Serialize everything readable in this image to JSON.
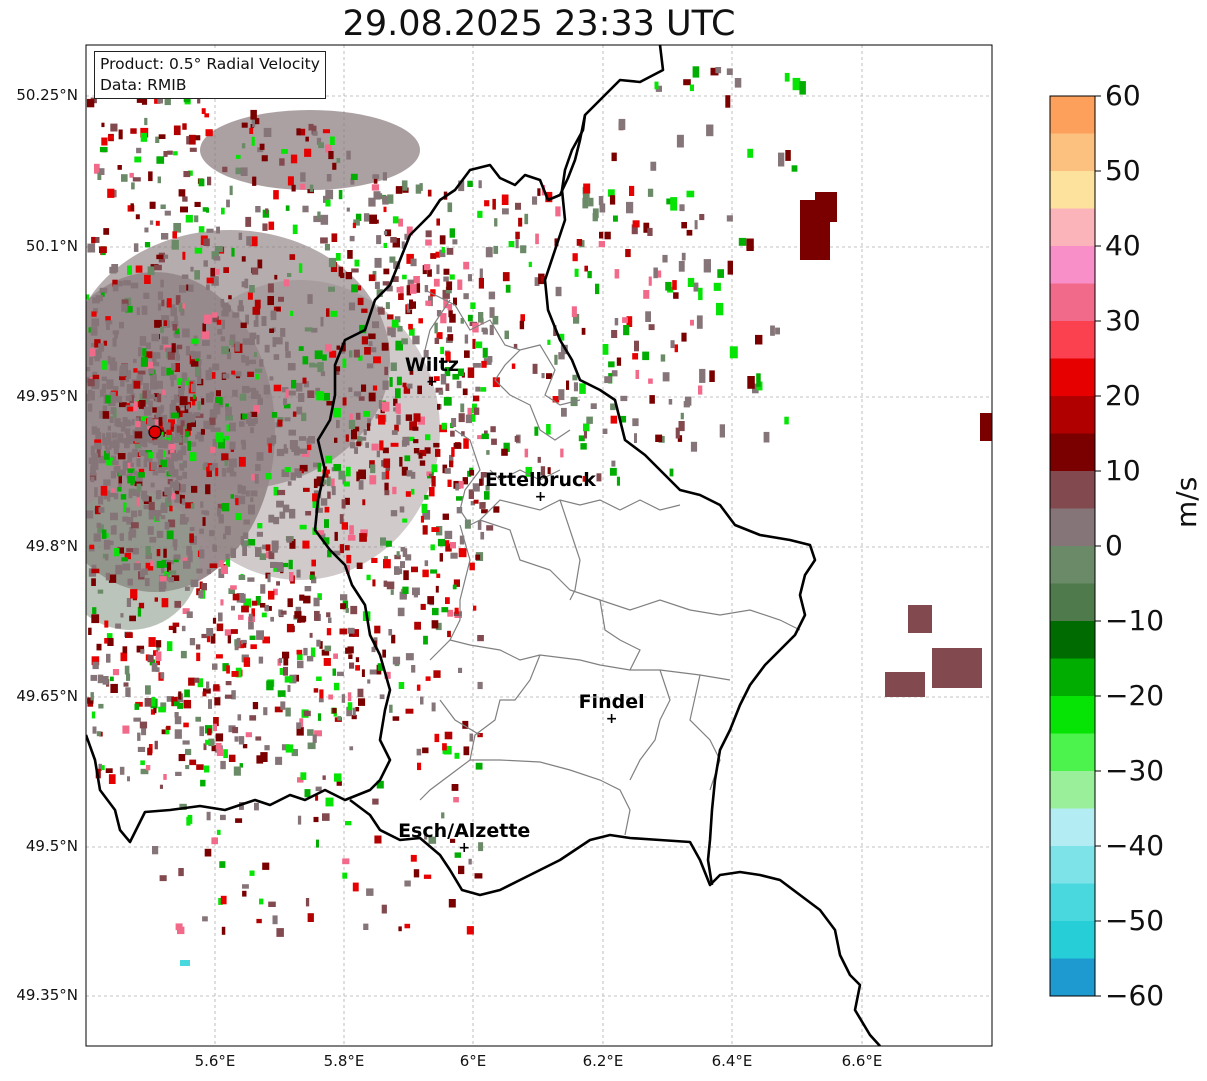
{
  "title": "29.08.2025 23:33 UTC",
  "info": {
    "product": "Product: 0.5° Radial Velocity",
    "data": "Data: RMIB"
  },
  "axes": {
    "lat_labels": [
      "50.25°N",
      "50.1°N",
      "49.95°N",
      "49.8°N",
      "49.65°N",
      "49.5°N",
      "49.35°N"
    ],
    "lon_labels": [
      "5.6°E",
      "5.8°E",
      "6°E",
      "6.2°E",
      "6.4°E",
      "6.6°E"
    ]
  },
  "cities": [
    {
      "name": "Wiltz",
      "lon": 5.935,
      "lat": 49.965
    },
    {
      "name": "Ettelbruck",
      "lon": 6.103,
      "lat": 49.85
    },
    {
      "name": "Findel",
      "lon": 6.213,
      "lat": 49.628
    },
    {
      "name": "Esch/Alzette",
      "lon": 5.985,
      "lat": 49.499
    }
  ],
  "radar_site": {
    "lon": 5.505,
    "lat": 49.914
  },
  "colorbar": {
    "unit": "m/s",
    "ticks": [
      "60",
      "50",
      "40",
      "30",
      "20",
      "10",
      "0",
      "−10",
      "−20",
      "−30",
      "−40",
      "−50",
      "−60"
    ],
    "colors": [
      "#fda05c",
      "#fdc17f",
      "#fde29e",
      "#fbb4b9",
      "#f98fc8",
      "#f26a8a",
      "#fb414f",
      "#e70000",
      "#b10000",
      "#7a0000",
      "#824a4f",
      "#857578",
      "#6b8a68",
      "#4e7a4c",
      "#006b00",
      "#00ad00",
      "#06e406",
      "#4cf34c",
      "#9af09a",
      "#b3ecf2",
      "#7ee3e8",
      "#4ad8df",
      "#26cfd8",
      "#1e9ad0"
    ]
  }
}
